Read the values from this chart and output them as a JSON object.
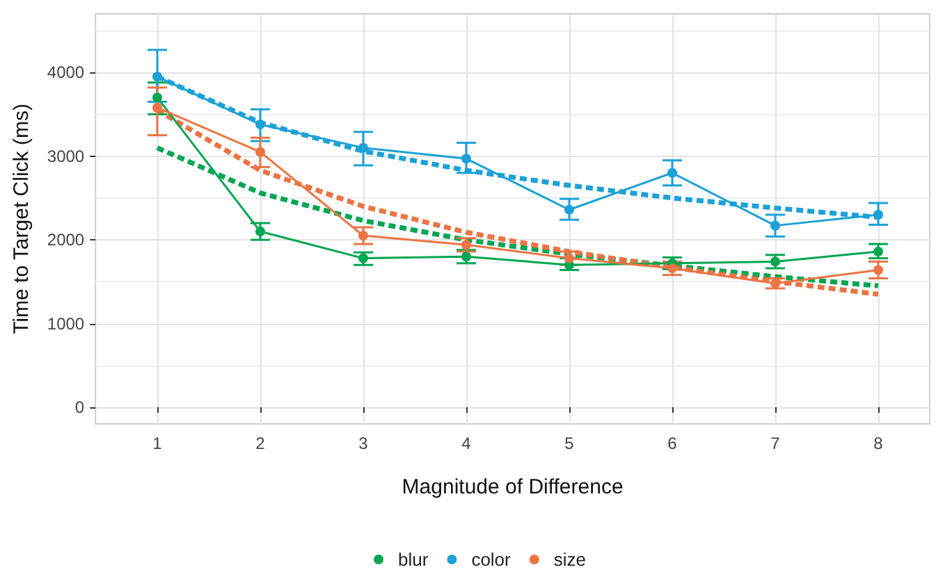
{
  "chart_data": {
    "type": "line",
    "xlabel": "Magnitude of Difference",
    "ylabel": "Time to Target Click (ms)",
    "x": [
      1,
      2,
      3,
      4,
      5,
      6,
      7,
      8
    ],
    "xlim": [
      0.4,
      8.5
    ],
    "xticks": [
      1,
      2,
      3,
      4,
      5,
      6,
      7,
      8
    ],
    "ylim": [
      -200,
      4700
    ],
    "yticks": [
      0,
      1000,
      2000,
      3000,
      4000
    ],
    "grid": true,
    "legend": "bottom",
    "marker": "circle",
    "line_style": "solid",
    "series": [
      {
        "name": "blur",
        "color": "#00a651",
        "values": [
          3700,
          2100,
          1780,
          1800,
          1700,
          1720,
          1740,
          1860
        ],
        "errors": [
          [
            3500,
            3880
          ],
          [
            2000,
            2200
          ],
          [
            1700,
            1850
          ],
          [
            1720,
            1880
          ],
          [
            1640,
            1780
          ],
          [
            1650,
            1790
          ],
          [
            1660,
            1820
          ],
          [
            1780,
            1950
          ]
        ]
      },
      {
        "name": "color",
        "color": "#1ba1d8",
        "values": [
          3950,
          3380,
          3100,
          2970,
          2360,
          2800,
          2170,
          2300
        ],
        "errors": [
          [
            3650,
            4270
          ],
          [
            3180,
            3560
          ],
          [
            2890,
            3290
          ],
          [
            2800,
            3160
          ],
          [
            2240,
            2490
          ],
          [
            2650,
            2950
          ],
          [
            2040,
            2300
          ],
          [
            2180,
            2440
          ]
        ]
      },
      {
        "name": "size",
        "color": "#ec7444",
        "values": [
          3580,
          3050,
          2050,
          1940,
          1780,
          1660,
          1480,
          1640
        ],
        "errors": [
          [
            3250,
            3820
          ],
          [
            2870,
            3220
          ],
          [
            1950,
            2150
          ],
          [
            1860,
            2020
          ],
          [
            1700,
            1860
          ],
          [
            1580,
            1740
          ],
          [
            1420,
            1540
          ],
          [
            1540,
            1740
          ]
        ]
      },
      {
        "type": "line",
        "color": "#00a651",
        "line_style": "dashed",
        "marker": "none",
        "values": [
          3100,
          2560,
          2230,
          2000,
          1830,
          1690,
          1560,
          1450
        ]
      },
      {
        "type": "line",
        "color": "#1ba1d8",
        "line_style": "dashed",
        "marker": "none",
        "values": [
          3950,
          3400,
          3060,
          2830,
          2650,
          2500,
          2380,
          2270
        ]
      },
      {
        "type": "line",
        "color": "#ec7444",
        "line_style": "dashed",
        "marker": "none",
        "values": [
          3550,
          2830,
          2400,
          2090,
          1860,
          1670,
          1500,
          1350
        ]
      }
    ]
  }
}
